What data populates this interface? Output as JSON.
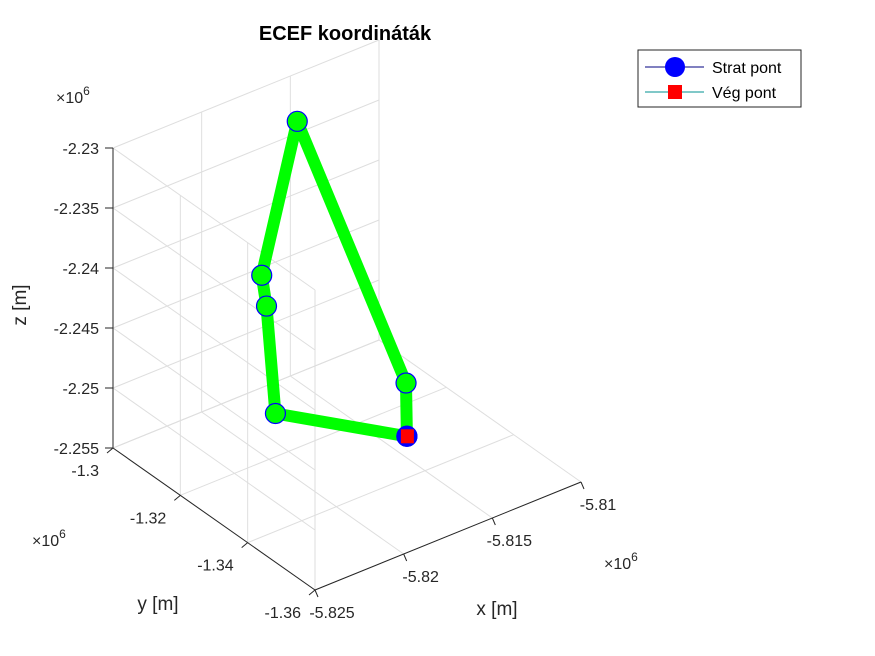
{
  "chart_data": {
    "type": "line",
    "projection": "3d",
    "title": "ECEF koordináták",
    "xlabel": "x [m]",
    "ylabel": "y [m]",
    "zlabel": "z [m]",
    "x_ticks": [
      "-5.825",
      "-5.82",
      "-5.815",
      "-5.81"
    ],
    "y_ticks": [
      "-1.3",
      "-1.32",
      "-1.34",
      "-1.36"
    ],
    "z_ticks": [
      "-2.23",
      "-2.235",
      "-2.24",
      "-2.245",
      "-2.25",
      "-2.255"
    ],
    "x_exponent": "×10",
    "y_exponent": "×10",
    "z_exponent": "×10",
    "exponent_power": "6",
    "grid": true,
    "legend_position": "top-right",
    "legend": [
      {
        "label": "Strat pont",
        "marker": "circle",
        "color": "#0000ff",
        "line_color": "#000080"
      },
      {
        "label": "Vég pont",
        "marker": "square",
        "color": "#ff0000",
        "line_color": "#009090"
      }
    ],
    "path_color": "#00ff00",
    "point_edge_color": "#0000ff",
    "start_marker_color": "#0000ff",
    "end_marker_color": "#ff0000",
    "xlim": [
      -5825000,
      -5810000
    ],
    "ylim": [
      -1360000,
      -1300000
    ],
    "zlim": [
      -2255000,
      -2230000
    ],
    "series": [
      {
        "x": [
          -5816400,
          -5812500,
          -5814800,
          -5820600,
          -5820900,
          -5822200,
          -5816400
        ],
        "y": [
          -1342000,
          -1321200,
          -1301000,
          -1321000,
          -1324000,
          -1333500,
          -1342000
        ],
        "z": [
          -2250900,
          -2252900,
          -2233700,
          -2239100,
          -2240900,
          -2247200,
          -2250900
        ]
      }
    ]
  }
}
